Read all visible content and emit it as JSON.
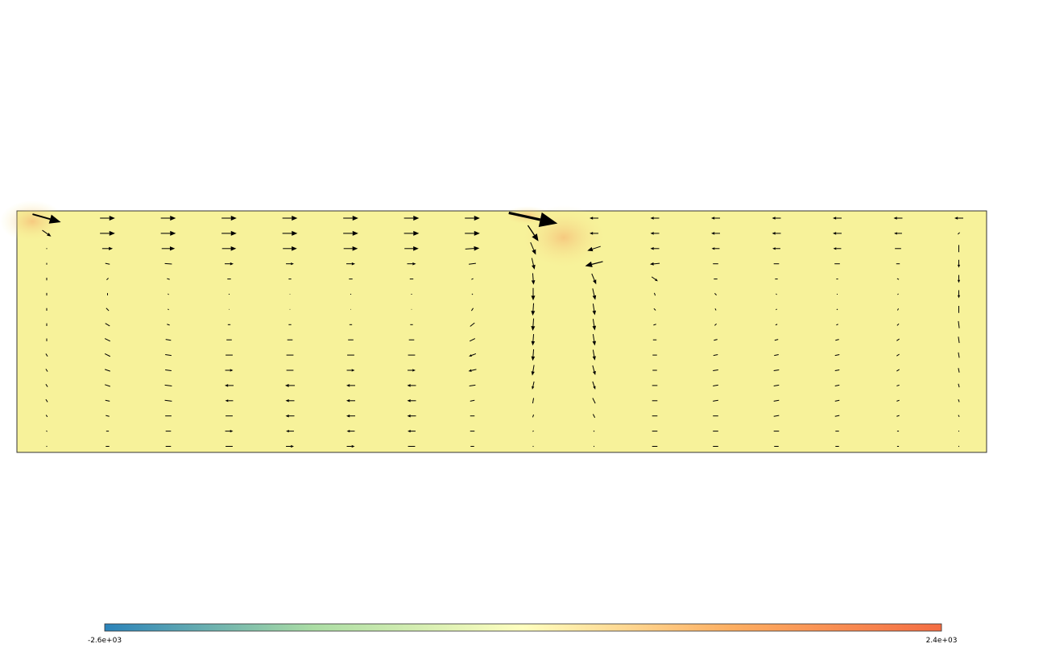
{
  "chart_data": {
    "type": "vector-field",
    "colormap": {
      "min_label": "-2.6e+03",
      "max_label": "2.4e+03",
      "min": -2600,
      "max": 2400,
      "colors": [
        "#2b83ba",
        "#abdda4",
        "#ffffbf",
        "#fdae61",
        "#f46d43"
      ]
    },
    "field_fill": "#f7f29a",
    "x": [
      0,
      1,
      2,
      3,
      4,
      5,
      6,
      7,
      8,
      9,
      10,
      11,
      12,
      13,
      14,
      15,
      16
    ],
    "rows": 16,
    "columns": [
      {
        "u": [
          [
            3.2,
            0.9
          ],
          [
            1.0,
            0.7
          ],
          [
            0,
            0.1
          ],
          [
            0,
            -0.2
          ],
          [
            0,
            -0.3
          ],
          [
            0,
            -0.3
          ],
          [
            0,
            -0.3
          ],
          [
            0,
            -0.3
          ],
          [
            0,
            -0.3
          ],
          [
            -0.2,
            -0.3
          ],
          [
            -0.2,
            -0.3
          ],
          [
            -0.2,
            -0.3
          ],
          [
            -0.2,
            -0.3
          ],
          [
            -0.15,
            -0.2
          ],
          [
            -0.1,
            -0.1
          ],
          [
            0,
            0
          ]
        ]
      },
      {
        "u": [
          [
            1.7,
            0
          ],
          [
            1.7,
            0
          ],
          [
            1.2,
            0
          ],
          [
            0.5,
            0.1
          ],
          [
            -0.2,
            0.2
          ],
          [
            0,
            0.25
          ],
          [
            0.3,
            0.3
          ],
          [
            0.5,
            0.3
          ],
          [
            0.6,
            0.3
          ],
          [
            0.6,
            0.3
          ],
          [
            0.6,
            0.2
          ],
          [
            0.6,
            0.2
          ],
          [
            0.5,
            0.1
          ],
          [
            0.4,
            0.1
          ],
          [
            0.3,
            0
          ],
          [
            0.4,
            0
          ]
        ]
      },
      {
        "u": [
          [
            1.7,
            0
          ],
          [
            1.7,
            0
          ],
          [
            1.5,
            0
          ],
          [
            0.8,
            0.05
          ],
          [
            0.3,
            0.1
          ],
          [
            0.1,
            0.1
          ],
          [
            0.1,
            0.1
          ],
          [
            0.3,
            0.1
          ],
          [
            0.6,
            0.1
          ],
          [
            0.7,
            0.1
          ],
          [
            0.7,
            0.1
          ],
          [
            0.8,
            0.1
          ],
          [
            0.8,
            0.1
          ],
          [
            0.7,
            0
          ],
          [
            0.6,
            0
          ],
          [
            0.6,
            0
          ]
        ]
      },
      {
        "u": [
          [
            1.7,
            0
          ],
          [
            1.7,
            0
          ],
          [
            1.6,
            0
          ],
          [
            1.0,
            0
          ],
          [
            0.4,
            0
          ],
          [
            0.1,
            0
          ],
          [
            0.05,
            0
          ],
          [
            0.3,
            0
          ],
          [
            0.6,
            0
          ],
          [
            0.8,
            0
          ],
          [
            0.9,
            0
          ],
          [
            -1.0,
            0
          ],
          [
            -0.9,
            0
          ],
          [
            -0.8,
            0
          ],
          [
            0.9,
            0
          ],
          [
            0.8,
            0
          ]
        ]
      },
      {
        "u": [
          [
            1.7,
            0
          ],
          [
            1.7,
            0
          ],
          [
            1.6,
            0
          ],
          [
            0.9,
            0
          ],
          [
            0.3,
            0
          ],
          [
            0.05,
            0
          ],
          [
            0.05,
            0
          ],
          [
            0.3,
            0
          ],
          [
            0.6,
            0
          ],
          [
            0.8,
            0
          ],
          [
            0.8,
            0
          ],
          [
            -1.1,
            0
          ],
          [
            -1.0,
            0
          ],
          [
            -1.0,
            0
          ],
          [
            -0.9,
            0
          ],
          [
            0.9,
            0
          ]
        ]
      },
      {
        "u": [
          [
            1.7,
            0
          ],
          [
            1.7,
            0
          ],
          [
            1.6,
            0
          ],
          [
            1.0,
            0
          ],
          [
            0.4,
            0
          ],
          [
            0.1,
            0
          ],
          [
            0.05,
            0
          ],
          [
            0.3,
            0
          ],
          [
            0.6,
            0
          ],
          [
            0.8,
            0
          ],
          [
            0.9,
            0
          ],
          [
            -1.0,
            0
          ],
          [
            -1.0,
            0
          ],
          [
            -1.0,
            0
          ],
          [
            -0.9,
            0
          ],
          [
            0.9,
            0
          ]
        ]
      },
      {
        "u": [
          [
            1.7,
            0
          ],
          [
            1.7,
            0
          ],
          [
            1.6,
            0
          ],
          [
            1.0,
            0
          ],
          [
            0.4,
            0
          ],
          [
            0.1,
            0
          ],
          [
            0.05,
            0
          ],
          [
            0.3,
            0
          ],
          [
            0.6,
            0
          ],
          [
            0.8,
            0
          ],
          [
            0.9,
            0
          ],
          [
            -1.0,
            0
          ],
          [
            -1.0,
            0
          ],
          [
            -1.0,
            0
          ],
          [
            -0.9,
            0
          ],
          [
            0.8,
            0
          ]
        ]
      },
      {
        "u": [
          [
            1.7,
            0
          ],
          [
            1.7,
            0
          ],
          [
            1.6,
            -0.1
          ],
          [
            0.8,
            -0.1
          ],
          [
            0.2,
            -0.1
          ],
          [
            0.1,
            0.1
          ],
          [
            -0.2,
            0.3
          ],
          [
            -0.5,
            0.4
          ],
          [
            -0.6,
            0.3
          ],
          [
            -0.8,
            0.3
          ],
          [
            -0.9,
            0.2
          ],
          [
            -0.7,
            0.1
          ],
          [
            -0.5,
            0.1
          ],
          [
            -0.5,
            0
          ],
          [
            -0.5,
            0
          ],
          [
            -0.4,
            0
          ]
        ]
      },
      {
        "u": [
          [
            5.5,
            1.2
          ],
          [
            1.2,
            1.8
          ],
          [
            0.6,
            1.4
          ],
          [
            0.3,
            1.3
          ],
          [
            0.1,
            1.3
          ],
          [
            0,
            1.4
          ],
          [
            -0.1,
            1.4
          ],
          [
            -0.1,
            1.4
          ],
          [
            -0.1,
            1.3
          ],
          [
            -0.1,
            1.3
          ],
          [
            -0.2,
            1.2
          ],
          [
            -0.2,
            0.9
          ],
          [
            -0.1,
            0.6
          ],
          [
            -0.1,
            0.3
          ],
          [
            -0.1,
            0.1
          ],
          [
            0,
            0
          ]
        ]
      },
      {
        "u": [
          [
            -1.0,
            0
          ],
          [
            -1.0,
            0
          ],
          [
            -1.5,
            0.5
          ],
          [
            -2.0,
            0.5
          ],
          [
            0.5,
            1.2
          ],
          [
            0.3,
            1.3
          ],
          [
            0.2,
            1.3
          ],
          [
            0.2,
            1.3
          ],
          [
            0.2,
            1.3
          ],
          [
            0.2,
            1.2
          ],
          [
            0.3,
            1.1
          ],
          [
            0.3,
            0.9
          ],
          [
            0.3,
            0.6
          ],
          [
            0.2,
            0.4
          ],
          [
            0.1,
            0.1
          ],
          [
            0,
            0
          ]
        ]
      },
      {
        "u": [
          [
            -1.0,
            0
          ],
          [
            -1.0,
            0
          ],
          [
            -1.0,
            0
          ],
          [
            -1.1,
            0.1
          ],
          [
            0.7,
            0.5
          ],
          [
            0.1,
            0.3
          ],
          [
            0.2,
            0.2
          ],
          [
            -0.3,
            0.1
          ],
          [
            -0.4,
            0
          ],
          [
            -0.5,
            0
          ],
          [
            -0.5,
            0
          ],
          [
            -0.6,
            0
          ],
          [
            -0.6,
            0
          ],
          [
            -0.6,
            0
          ],
          [
            -0.6,
            0
          ],
          [
            -0.6,
            0
          ]
        ]
      },
      {
        "u": [
          [
            -1.0,
            0
          ],
          [
            -1.0,
            0
          ],
          [
            -0.9,
            0
          ],
          [
            -0.6,
            0
          ],
          [
            -0.4,
            0
          ],
          [
            0.2,
            0.2
          ],
          [
            0.1,
            0.2
          ],
          [
            -0.2,
            0.2
          ],
          [
            -0.4,
            0.1
          ],
          [
            -0.5,
            0.1
          ],
          [
            -0.6,
            0.1
          ],
          [
            -0.6,
            0.1
          ],
          [
            -0.6,
            0.1
          ],
          [
            -0.6,
            0
          ],
          [
            -0.6,
            0
          ],
          [
            -0.6,
            0
          ]
        ]
      },
      {
        "u": [
          [
            -1.0,
            0
          ],
          [
            -1.0,
            0
          ],
          [
            -0.9,
            0
          ],
          [
            -0.6,
            0
          ],
          [
            -0.3,
            0
          ],
          [
            0.1,
            0.1
          ],
          [
            -0.1,
            0.1
          ],
          [
            -0.2,
            0.1
          ],
          [
            -0.4,
            0.1
          ],
          [
            -0.5,
            0.1
          ],
          [
            -0.6,
            0.1
          ],
          [
            -0.6,
            0.1
          ],
          [
            -0.6,
            0.1
          ],
          [
            -0.6,
            0.1
          ],
          [
            -0.6,
            0
          ],
          [
            -0.5,
            0
          ]
        ]
      },
      {
        "u": [
          [
            -1.0,
            0
          ],
          [
            -1.0,
            0
          ],
          [
            -0.9,
            0
          ],
          [
            -0.6,
            0
          ],
          [
            -0.2,
            0
          ],
          [
            0,
            0.1
          ],
          [
            -0.1,
            0.1
          ],
          [
            -0.2,
            0.1
          ],
          [
            -0.4,
            0.1
          ],
          [
            -0.5,
            0.1
          ],
          [
            -0.5,
            0.1
          ],
          [
            -0.5,
            0.1
          ],
          [
            -0.5,
            0.1
          ],
          [
            -0.5,
            0.1
          ],
          [
            -0.4,
            0
          ],
          [
            -0.4,
            0
          ]
        ]
      },
      {
        "u": [
          [
            -1.0,
            0
          ],
          [
            -0.9,
            0
          ],
          [
            -0.7,
            0
          ],
          [
            -0.4,
            0
          ],
          [
            -0.2,
            -0.1
          ],
          [
            -0.1,
            0.1
          ],
          [
            -0.1,
            0.2
          ],
          [
            -0.2,
            0.2
          ],
          [
            -0.3,
            0.2
          ],
          [
            -0.3,
            0.2
          ],
          [
            -0.3,
            0.2
          ],
          [
            -0.3,
            0.1
          ],
          [
            -0.3,
            0.1
          ],
          [
            -0.3,
            0.1
          ],
          [
            -0.2,
            0
          ],
          [
            -0.2,
            0
          ]
        ]
      },
      {
        "u": [
          [
            -1.0,
            0
          ],
          [
            -0.2,
            0.2
          ],
          [
            0,
            0.8
          ],
          [
            0,
            0.9
          ],
          [
            0,
            0.9
          ],
          [
            0,
            0.9
          ],
          [
            0,
            0.8
          ],
          [
            0.1,
            0.8
          ],
          [
            0.1,
            0.7
          ],
          [
            0.1,
            0.6
          ],
          [
            0.1,
            0.5
          ],
          [
            0.1,
            0.4
          ],
          [
            0.1,
            0.3
          ],
          [
            0.1,
            0.2
          ],
          [
            0,
            0.1
          ],
          [
            0,
            0
          ]
        ]
      }
    ]
  }
}
